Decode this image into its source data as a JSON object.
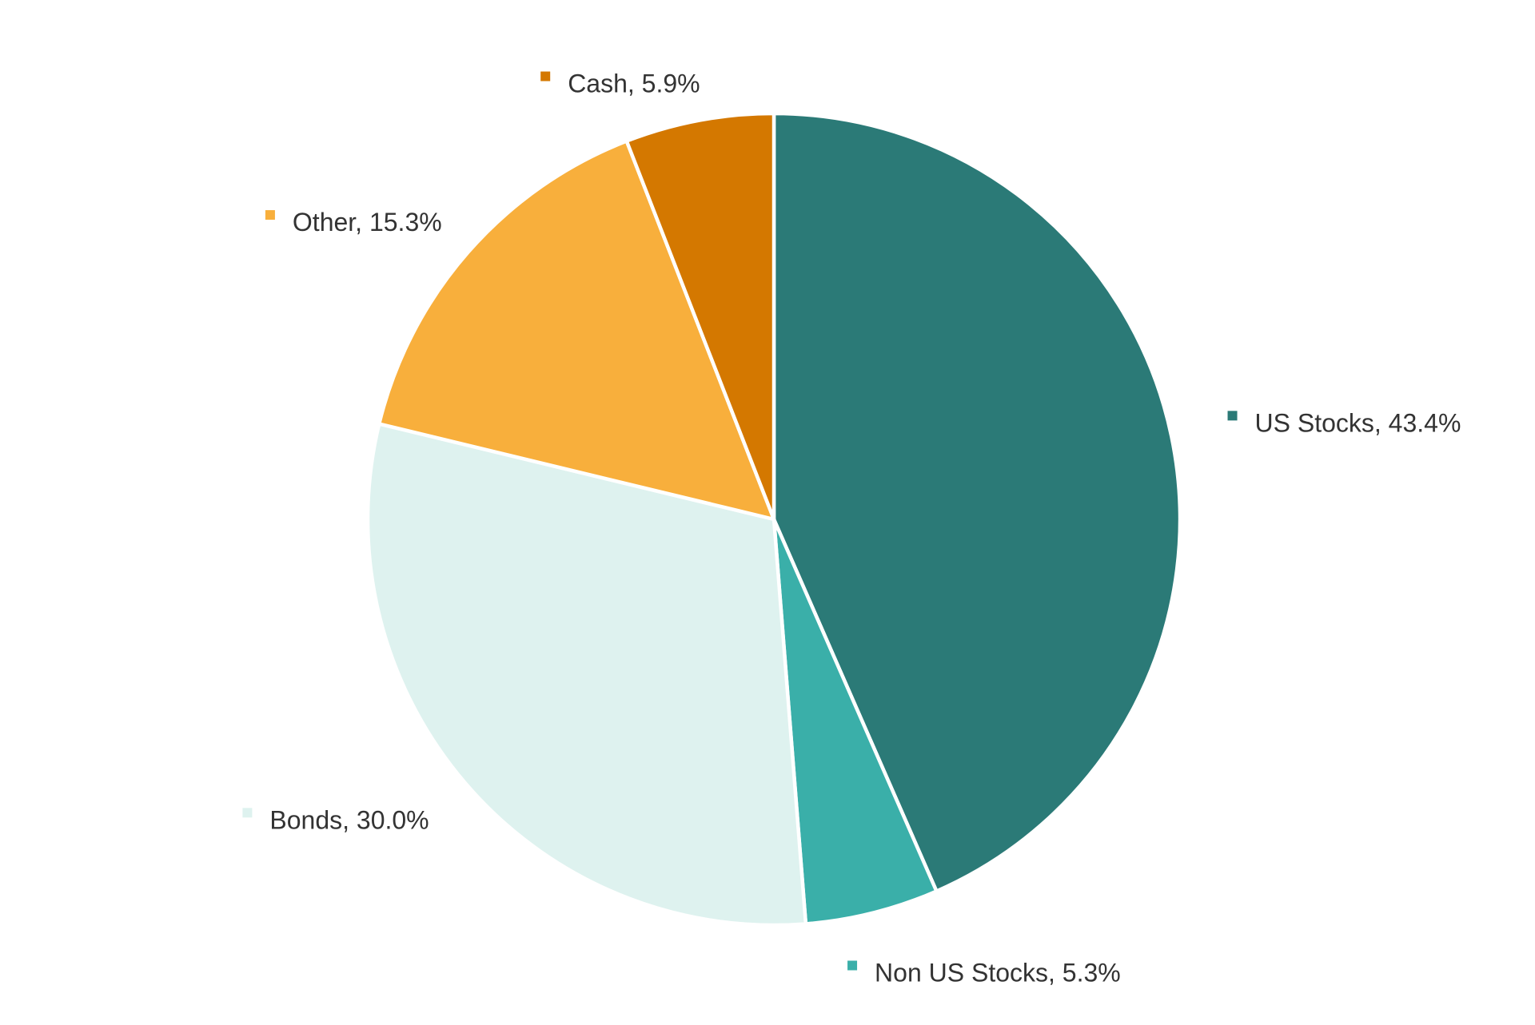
{
  "chart_data": {
    "type": "pie",
    "title": "",
    "start_angle_deg": 0,
    "direction": "clockwise",
    "slices": [
      {
        "name": "US Stocks",
        "value": 43.4,
        "label": "US Stocks, 43.4%",
        "color": "#2B7A77"
      },
      {
        "name": "Non US Stocks",
        "value": 5.3,
        "label": "Non US Stocks, 5.3%",
        "color": "#3AAFA9"
      },
      {
        "name": "Bonds",
        "value": 30.0,
        "label": "Bonds, 30.0%",
        "color": "#DEF2EF"
      },
      {
        "name": "Other",
        "value": 15.3,
        "label": "Other, 15.3%",
        "color": "#F8AF3C"
      },
      {
        "name": "Cash",
        "value": 5.9,
        "label": "Cash, 5.9%",
        "color": "#D47800"
      }
    ],
    "legend": "none",
    "data_labels": "outside"
  }
}
